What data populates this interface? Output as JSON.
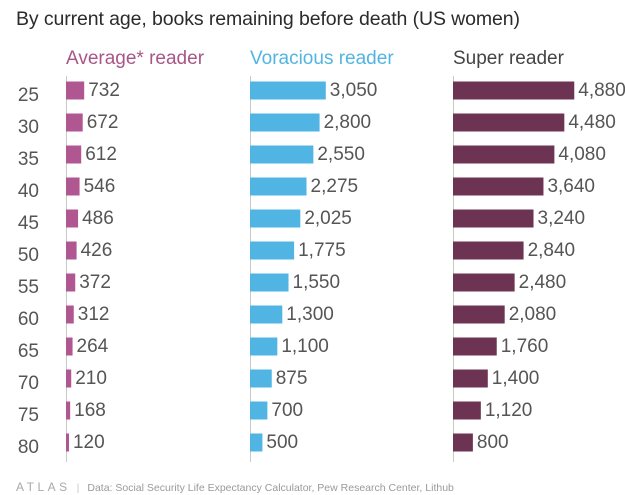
{
  "title": "By current age, books remaining before death (US women)",
  "footer": {
    "brand": "ATLAS",
    "source": "Data:  Social Security Life Expectancy Calculator, Pew Research Center, Lithub"
  },
  "chart_data": {
    "type": "bar",
    "orientation": "horizontal",
    "title": "By current age, books remaining before death (US women)",
    "categories": [
      "25",
      "30",
      "35",
      "40",
      "45",
      "50",
      "55",
      "60",
      "65",
      "70",
      "75",
      "80"
    ],
    "series": [
      {
        "name": "Average* reader",
        "color": "#b05690",
        "labels": [
          "732",
          "672",
          "612",
          "546",
          "486",
          "426",
          "372",
          "312",
          "264",
          "210",
          "168",
          "120"
        ],
        "values": [
          732,
          672,
          612,
          546,
          486,
          426,
          372,
          312,
          264,
          210,
          168,
          120
        ]
      },
      {
        "name": "Voracious reader",
        "color": "#51b5e3",
        "labels": [
          "3,050",
          "2,800",
          "2,550",
          "2,275",
          "2,025",
          "1,775",
          "1,550",
          "1,300",
          "1,100",
          "875",
          "700",
          "500"
        ],
        "values": [
          3050,
          2800,
          2550,
          2275,
          2025,
          1775,
          1550,
          1300,
          1100,
          875,
          700,
          500
        ]
      },
      {
        "name": "Super reader",
        "color": "#6c3452",
        "labels": [
          "4,880",
          "4,480",
          "4,080",
          "3,640",
          "3,240",
          "2,840",
          "2,480",
          "2,080",
          "1,760",
          "1,400",
          "1,120",
          "800"
        ],
        "values": [
          4880,
          4480,
          4080,
          3640,
          3240,
          2840,
          2480,
          2080,
          1760,
          1400,
          1120,
          800
        ]
      }
    ],
    "header_colors": [
      "#a85688",
      "#51b5e3",
      "#444444"
    ],
    "value_label_color": "#555555",
    "category_label_color": "#555555",
    "grid": false,
    "legend": "panel headers"
  }
}
